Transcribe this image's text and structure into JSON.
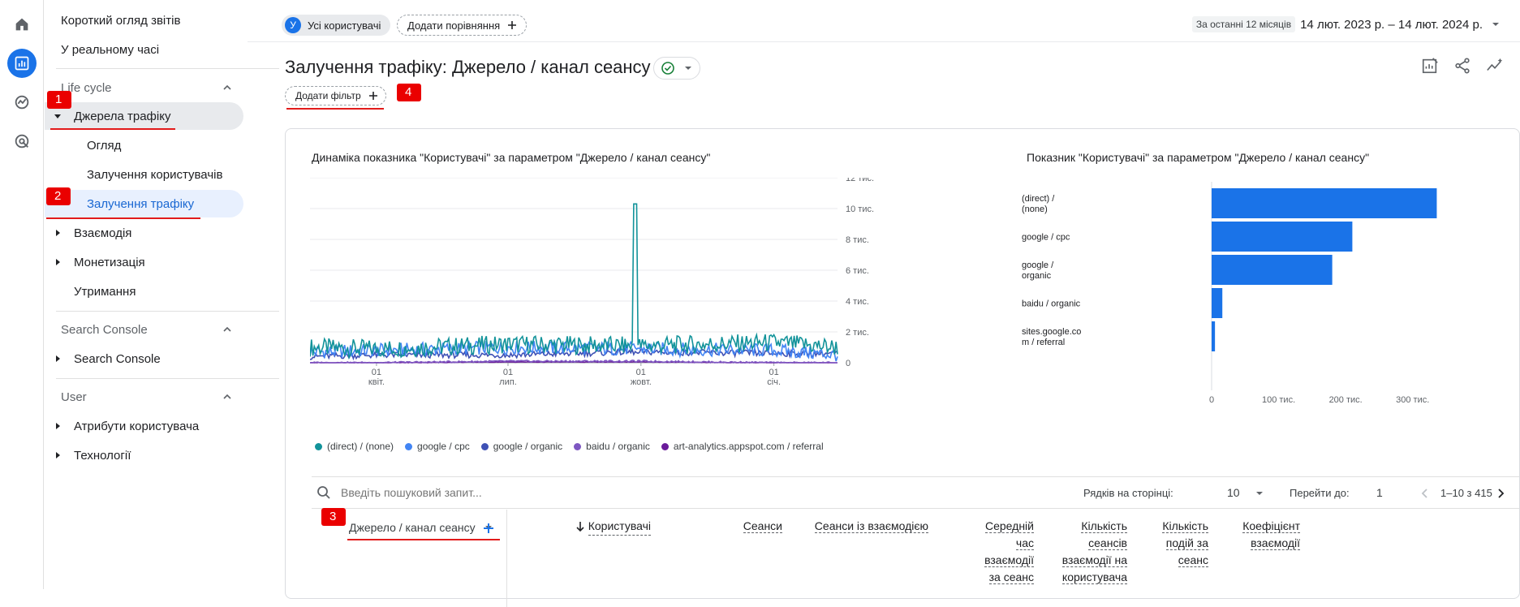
{
  "sidebar": {
    "reports_snapshot": "Короткий огляд звітів",
    "realtime": "У реальному часі",
    "lifecycle": "Life cycle",
    "acquisition": "Джерела трафіку",
    "overview": "Огляд",
    "user_acquisition": "Залучення користувачів",
    "traffic_acquisition": "Залучення трафіку",
    "engagement": "Взаємодія",
    "monetization": "Монетизація",
    "retention": "Утримання",
    "search_console_section": "Search Console",
    "search_console_item": "Search Console",
    "user_section": "User",
    "user_attributes": "Атрибути користувача",
    "tech": "Технології"
  },
  "annotations": [
    "1",
    "2",
    "3",
    "4"
  ],
  "topbar": {
    "user_avatar_letter": "У",
    "all_users": "Усі користувачі",
    "add_comparison": "Додати порівняння",
    "date_preset": "За останні 12 місяців",
    "date_range": "14 лют. 2023 р. – 14 лют. 2024 р."
  },
  "page": {
    "title": "Залучення трафіку: Джерело / канал сеансу",
    "add_filter": "Додати фільтр"
  },
  "line_chart": {
    "title": "Динаміка показника \"Користувачі\" за параметром \"Джерело / канал сеансу\"",
    "y_ticks": [
      "12 тис.",
      "10 тис.",
      "8 тис.",
      "6 тис.",
      "4 тис.",
      "2 тис.",
      "0"
    ],
    "x_ticks": [
      {
        "day": "01",
        "month": "квіт."
      },
      {
        "day": "01",
        "month": "лип."
      },
      {
        "day": "01",
        "month": "жовт."
      },
      {
        "day": "01",
        "month": "січ."
      }
    ],
    "legend": [
      {
        "label": "(direct) / (none)",
        "color": "#12939a"
      },
      {
        "label": "google / cpc",
        "color": "#4285f4"
      },
      {
        "label": "google / organic",
        "color": "#3f51b5"
      },
      {
        "label": "baidu / organic",
        "color": "#7e57c2"
      },
      {
        "label": "art-analytics.appspot.com / referral",
        "color": "#6a1b9a"
      }
    ]
  },
  "bar_chart": {
    "title": "Показник \"Користувачі\" за параметром \"Джерело / канал сеансу\"",
    "labels": [
      [
        "(direct) /",
        "(none)"
      ],
      [
        "google / cpc"
      ],
      [
        "google /",
        "organic"
      ],
      [
        "baidu / organic"
      ],
      [
        "sites.google.co",
        "m / referral"
      ]
    ],
    "x_ticks": [
      "0",
      "100 тис.",
      "200 тис.",
      "300 тис."
    ]
  },
  "chart_data": [
    {
      "type": "line",
      "title": "Динаміка показника \"Користувачі\" за параметром \"Джерело / канал сеансу\"",
      "xlabel": "",
      "ylabel": "",
      "ylim": [
        0,
        12000
      ],
      "x": [
        "2023-02-14",
        "2023-04-01",
        "2023-07-01",
        "2023-09-27",
        "2023-10-01",
        "2024-01-01",
        "2024-02-14"
      ],
      "series": [
        {
          "name": "(direct) / (none)",
          "values": [
            1000,
            900,
            1200,
            10300,
            1100,
            1300,
            1000
          ]
        },
        {
          "name": "google / cpc",
          "values": [
            700,
            800,
            1000,
            1800,
            900,
            800,
            500
          ]
        },
        {
          "name": "google / organic",
          "values": [
            400,
            500,
            500,
            500,
            700,
            600,
            600
          ]
        },
        {
          "name": "baidu / organic",
          "values": [
            0,
            0,
            100,
            400,
            100,
            0,
            0
          ]
        },
        {
          "name": "art-analytics.appspot.com / referral",
          "values": [
            0,
            0,
            50,
            200,
            50,
            0,
            0
          ]
        }
      ]
    },
    {
      "type": "bar",
      "orientation": "horizontal",
      "title": "Показник \"Користувачі\" за параметром \"Джерело / канал сеансу\"",
      "categories": [
        "(direct) / (none)",
        "google / cpc",
        "google / organic",
        "baidu / organic",
        "sites.google.com / referral"
      ],
      "values": [
        336000,
        210000,
        180000,
        16000,
        5000
      ],
      "xlim": [
        0,
        350000
      ]
    }
  ],
  "table": {
    "search_placeholder": "Введіть пошуковий запит...",
    "rows_per_page_label": "Рядків на сторінці:",
    "rows_per_page": "10",
    "go_to_label": "Перейти до:",
    "go_to_value": "1",
    "pagination": "1–10 з 415",
    "dimension": "Джерело / канал сеансу",
    "columns": [
      [
        "Користувачі"
      ],
      [
        "Сеанси"
      ],
      [
        "Сеанси із взаємодією"
      ],
      [
        "Середній",
        "час",
        "взаємодії",
        "за сеанс"
      ],
      [
        "Кількість",
        "сеансів",
        "взаємодії на",
        "користувача"
      ],
      [
        "Кількість",
        "подій за",
        "сеанс"
      ],
      [
        "Коефіцієнт",
        "взаємодії"
      ]
    ]
  }
}
